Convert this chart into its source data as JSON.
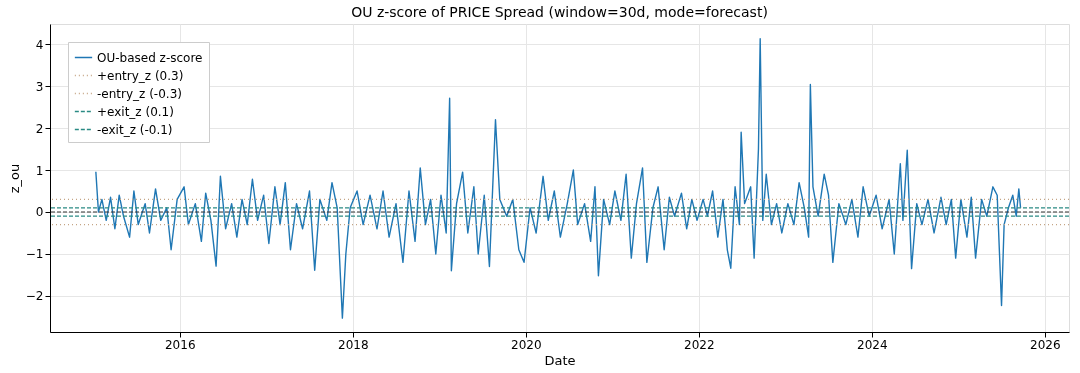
{
  "chart_data": {
    "type": "line",
    "title": "OU z-score of PRICE Spread (window=30d, mode=forecast)",
    "xlabel": "Date",
    "ylabel": "z_ou",
    "xlim": [
      2014.5,
      2026.28
    ],
    "xticks": [
      2016,
      2018,
      2020,
      2022,
      2024,
      2026
    ],
    "ylim": [
      -2.86,
      4.48
    ],
    "yticks": [
      -2,
      -1,
      0,
      1,
      2,
      3,
      4
    ],
    "grid": true,
    "legend": "top left",
    "line_style": "solid",
    "marker": "none",
    "series": [
      {
        "name": "OU-based z-score",
        "color": "#1f77b4",
        "x": [
          2015.03,
          2015.06,
          2015.1,
          2015.15,
          2015.2,
          2015.25,
          2015.3,
          2015.35,
          2015.42,
          2015.47,
          2015.52,
          2015.6,
          2015.65,
          2015.72,
          2015.78,
          2015.85,
          2015.9,
          2015.97,
          2016.05,
          2016.1,
          2016.18,
          2016.25,
          2016.3,
          2016.36,
          2016.42,
          2016.47,
          2016.53,
          2016.6,
          2016.66,
          2016.72,
          2016.78,
          2016.84,
          2016.9,
          2016.97,
          2017.03,
          2017.1,
          2017.16,
          2017.22,
          2017.28,
          2017.35,
          2017.42,
          2017.5,
          2017.56,
          2017.62,
          2017.7,
          2017.76,
          2017.82,
          2017.88,
          2017.92,
          2017.97,
          2018.05,
          2018.12,
          2018.2,
          2018.28,
          2018.35,
          2018.42,
          2018.5,
          2018.58,
          2018.65,
          2018.72,
          2018.78,
          2018.84,
          2018.9,
          2018.96,
          2019.02,
          2019.08,
          2019.12,
          2019.14,
          2019.2,
          2019.27,
          2019.33,
          2019.4,
          2019.45,
          2019.52,
          2019.58,
          2019.65,
          2019.7,
          2019.78,
          2019.85,
          2019.92,
          2019.98,
          2020.05,
          2020.12,
          2020.2,
          2020.26,
          2020.33,
          2020.4,
          2020.48,
          2020.55,
          2020.6,
          2020.68,
          2020.75,
          2020.8,
          2020.84,
          2020.9,
          2020.97,
          2021.03,
          2021.1,
          2021.16,
          2021.22,
          2021.28,
          2021.35,
          2021.4,
          2021.47,
          2021.53,
          2021.6,
          2021.66,
          2021.72,
          2021.8,
          2021.86,
          2021.92,
          2021.98,
          2022.05,
          2022.1,
          2022.16,
          2022.22,
          2022.28,
          2022.33,
          2022.37,
          2022.42,
          2022.47,
          2022.49,
          2022.53,
          2022.6,
          2022.64,
          2022.69,
          2022.71,
          2022.74,
          2022.78,
          2022.84,
          2022.9,
          2022.96,
          2023.03,
          2023.1,
          2023.16,
          2023.22,
          2023.27,
          2023.29,
          2023.32,
          2023.38,
          2023.45,
          2023.5,
          2023.55,
          2023.62,
          2023.7,
          2023.77,
          2023.84,
          2023.9,
          2023.97,
          2024.05,
          2024.12,
          2024.2,
          2024.26,
          2024.33,
          2024.36,
          2024.41,
          2024.46,
          2024.52,
          2024.58,
          2024.65,
          2024.72,
          2024.8,
          2024.86,
          2024.92,
          2024.97,
          2025.03,
          2025.1,
          2025.15,
          2025.2,
          2025.27,
          2025.33,
          2025.4,
          2025.45,
          2025.5,
          2025.53,
          2025.58,
          2025.63,
          2025.67,
          2025.7,
          2025.72
        ],
        "values": [
          0.96,
          0.0,
          0.3,
          -0.2,
          0.35,
          -0.4,
          0.4,
          -0.1,
          -0.6,
          0.5,
          -0.3,
          0.2,
          -0.5,
          0.55,
          -0.2,
          0.1,
          -0.9,
          0.3,
          0.6,
          -0.3,
          0.2,
          -0.7,
          0.45,
          -0.2,
          -1.29,
          0.85,
          -0.4,
          0.2,
          -0.6,
          0.3,
          -0.3,
          0.78,
          -0.2,
          0.4,
          -0.75,
          0.6,
          -0.3,
          0.7,
          -0.9,
          0.2,
          -0.4,
          0.5,
          -1.39,
          0.3,
          -0.2,
          0.7,
          0.1,
          -2.53,
          -1.0,
          0.1,
          0.5,
          -0.3,
          0.4,
          -0.4,
          0.5,
          -0.6,
          0.2,
          -1.2,
          0.5,
          -0.7,
          1.05,
          -0.3,
          0.3,
          -1.0,
          0.4,
          -0.5,
          2.71,
          -1.4,
          0.2,
          0.95,
          -0.5,
          0.6,
          -1.0,
          0.4,
          -1.3,
          2.2,
          0.3,
          -0.1,
          0.3,
          -0.9,
          -1.2,
          0.1,
          -0.5,
          0.85,
          -0.2,
          0.5,
          -0.6,
          0.2,
          1.0,
          -0.3,
          0.2,
          -0.7,
          0.6,
          -1.52,
          0.3,
          -0.3,
          0.5,
          -0.2,
          0.9,
          -1.1,
          0.2,
          1.05,
          -1.2,
          0.1,
          0.6,
          -0.9,
          0.35,
          -0.1,
          0.45,
          -0.4,
          0.3,
          -0.2,
          0.3,
          -0.1,
          0.5,
          -0.6,
          0.3,
          -0.9,
          -1.34,
          0.6,
          -0.3,
          1.9,
          0.2,
          0.6,
          -1.1,
          1.5,
          4.13,
          -0.2,
          0.9,
          -0.3,
          0.2,
          -0.5,
          0.2,
          -0.3,
          0.7,
          0.1,
          -0.6,
          3.04,
          0.6,
          -0.1,
          0.9,
          0.4,
          -1.2,
          0.2,
          -0.3,
          0.3,
          -0.6,
          0.6,
          -0.1,
          0.4,
          -0.4,
          0.3,
          -1.0,
          1.15,
          -0.2,
          1.47,
          -1.35,
          0.2,
          -0.3,
          0.3,
          -0.5,
          0.35,
          -0.3,
          0.3,
          -1.1,
          0.3,
          -0.6,
          0.35,
          -1.1,
          0.3,
          -0.1,
          0.6,
          0.4,
          -2.23,
          -0.3,
          0.1,
          0.4,
          -0.1,
          0.55,
          0.1
        ]
      }
    ],
    "ref_lines": [
      {
        "axis": "y",
        "value": 0.3,
        "label": "+entry_z (0.3)",
        "color": "#c4a484",
        "line_style": "dotted"
      },
      {
        "axis": "y",
        "value": -0.3,
        "label": "-entry_z (-0.3)",
        "color": "#c4a484",
        "line_style": "dotted"
      },
      {
        "axis": "y",
        "value": 0.1,
        "label": "+exit_z (0.1)",
        "color": "#2a8a84",
        "line_style": "dashed"
      },
      {
        "axis": "y",
        "value": -0.1,
        "label": "-exit_z (-0.1)",
        "color": "#2a8a84",
        "line_style": "dashed"
      },
      {
        "axis": "y",
        "value": 0,
        "label": null,
        "color": "#333333",
        "line_style": "dashed"
      }
    ]
  }
}
